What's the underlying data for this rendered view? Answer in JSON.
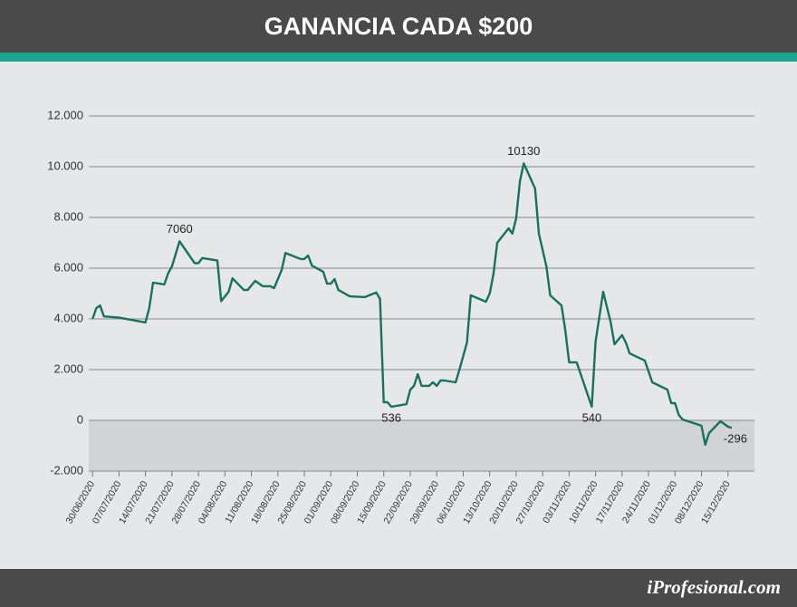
{
  "chart_data": {
    "type": "line",
    "title": "GANANCIA CADA $200",
    "brand": "iProfesional.com",
    "grid": true,
    "xlim": [
      "29/06/2020",
      "22/12/2020"
    ],
    "ylim": [
      -2000,
      12000
    ],
    "yticks": [
      {
        "value": -2000,
        "label": "-2.000"
      },
      0,
      {
        "value": 2000,
        "label": "2.000"
      },
      {
        "value": 4000,
        "label": "4.000"
      },
      {
        "value": 6000,
        "label": "6.000"
      },
      {
        "value": 8000,
        "label": "8.000"
      },
      {
        "value": 10000,
        "label": "10.000"
      },
      {
        "value": 12000,
        "label": "12.000"
      }
    ],
    "xticks": [
      "30/06/2020",
      "07/07/2020",
      "14/07/2020",
      "21/07/2020",
      "28/07/2020",
      "04/08/2020",
      "11/08/2020",
      "18/08/2020",
      "25/08/2020",
      "01/09/2020",
      "08/09/2020",
      "15/09/2020",
      "22/09/2020",
      "29/09/2020",
      "06/10/2020",
      "13/10/2020",
      "20/10/2020",
      "27/10/2020",
      "03/11/2020",
      "10/11/2020",
      "17/11/2020",
      "24/11/2020",
      "01/12/2020",
      "08/12/2020",
      "15/12/2020"
    ],
    "x": [
      "30/06/2020",
      "01/07/2020",
      "02/07/2020",
      "03/07/2020",
      "07/07/2020",
      "14/07/2020",
      "15/07/2020",
      "16/07/2020",
      "19/07/2020",
      "20/07/2020",
      "21/07/2020",
      "23/07/2020",
      "27/07/2020",
      "28/07/2020",
      "29/07/2020",
      "02/08/2020",
      "03/08/2020",
      "05/08/2020",
      "06/08/2020",
      "09/08/2020",
      "10/08/2020",
      "12/08/2020",
      "14/08/2020",
      "16/08/2020",
      "17/08/2020",
      "19/08/2020",
      "20/08/2020",
      "24/08/2020",
      "25/08/2020",
      "26/08/2020",
      "27/08/2020",
      "30/08/2020",
      "31/08/2020",
      "01/09/2020",
      "02/09/2020",
      "03/09/2020",
      "06/09/2020",
      "10/09/2020",
      "13/09/2020",
      "14/09/2020",
      "15/09/2020",
      "16/09/2020",
      "17/09/2020",
      "21/09/2020",
      "22/09/2020",
      "23/09/2020",
      "24/09/2020",
      "25/09/2020",
      "27/09/2020",
      "28/09/2020",
      "29/09/2020",
      "30/09/2020",
      "01/10/2020",
      "04/10/2020",
      "05/10/2020",
      "07/10/2020",
      "08/10/2020",
      "12/10/2020",
      "13/10/2020",
      "14/10/2020",
      "15/10/2020",
      "18/10/2020",
      "19/10/2020",
      "20/10/2020",
      "21/10/2020",
      "22/10/2020",
      "25/10/2020",
      "26/10/2020",
      "28/10/2020",
      "29/10/2020",
      "01/11/2020",
      "02/11/2020",
      "03/11/2020",
      "05/11/2020",
      "09/11/2020",
      "10/11/2020",
      "12/11/2020",
      "14/11/2020",
      "15/11/2020",
      "17/11/2020",
      "18/11/2020",
      "19/11/2020",
      "23/11/2020",
      "24/11/2020",
      "25/11/2020",
      "29/11/2020",
      "30/11/2020",
      "01/12/2020",
      "02/12/2020",
      "03/12/2020",
      "08/12/2020",
      "09/12/2020",
      "10/12/2020",
      "13/12/2020",
      "14/12/2020",
      "15/12/2020",
      "16/12/2020"
    ],
    "series": [
      {
        "color": "#16725e",
        "values": [
          4000,
          4430,
          4530,
          4100,
          4050,
          3860,
          4430,
          5430,
          5360,
          5800,
          6070,
          7060,
          6200,
          6200,
          6400,
          6300,
          4700,
          5070,
          5600,
          5140,
          5140,
          5500,
          5290,
          5290,
          5210,
          5930,
          6600,
          6360,
          6360,
          6500,
          6100,
          5860,
          5390,
          5390,
          5570,
          5140,
          4890,
          4860,
          5040,
          4790,
          714,
          714,
          536,
          640,
          1210,
          1360,
          1820,
          1360,
          1360,
          1500,
          1360,
          1570,
          1570,
          1500,
          2000,
          3070,
          4930,
          4680,
          5000,
          5750,
          7000,
          7570,
          7360,
          7960,
          9430,
          10130,
          9140,
          7360,
          6070,
          4930,
          4530,
          3540,
          2290,
          2290,
          540,
          3110,
          5070,
          3860,
          3000,
          3360,
          3070,
          2640,
          2360,
          1930,
          1500,
          1210,
          680,
          680,
          210,
          36,
          -210,
          -960,
          -500,
          -36,
          -140,
          -250,
          -296
        ],
        "value_labels": [
          null,
          null,
          null,
          null,
          null,
          null,
          null,
          null,
          null,
          null,
          null,
          "7060",
          null,
          null,
          null,
          null,
          null,
          null,
          null,
          null,
          null,
          null,
          null,
          null,
          null,
          null,
          null,
          null,
          null,
          null,
          null,
          null,
          null,
          null,
          null,
          null,
          null,
          null,
          null,
          null,
          null,
          null,
          "536",
          null,
          null,
          null,
          null,
          null,
          null,
          null,
          null,
          null,
          null,
          null,
          null,
          null,
          null,
          null,
          null,
          null,
          null,
          null,
          null,
          null,
          null,
          "10130",
          null,
          null,
          null,
          null,
          null,
          null,
          null,
          null,
          "540",
          null,
          null,
          null,
          null,
          null,
          null,
          null,
          null,
          null,
          null,
          null,
          null,
          null,
          null,
          null,
          null,
          null,
          null,
          null,
          null,
          null,
          "-296"
        ]
      }
    ]
  }
}
